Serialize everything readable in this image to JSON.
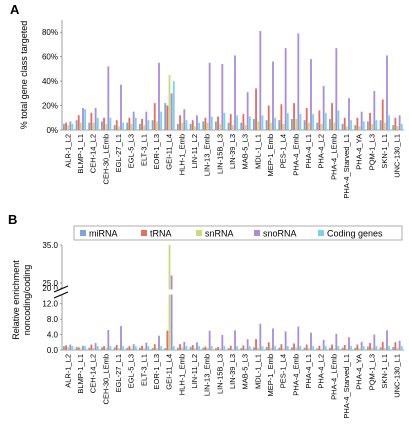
{
  "chart_data": [
    {
      "panel": "A",
      "type": "bar",
      "ylabel": "% total gene class targeted",
      "yticks": [
        "0%",
        "20%",
        "40%",
        "60%",
        "80%"
      ],
      "ylim": [
        0,
        90
      ],
      "categories": [
        "ALR-1_L2",
        "BLMP-1_L1",
        "CEH-14_L2",
        "CEH-30_LEmb",
        "EGL-27_L1",
        "EGL-5_L3",
        "ELT-3_L1",
        "EOR-1_L3",
        "GEI-11_L4",
        "HLH-1_Emb",
        "LIN-11_L2",
        "LIN-13_Emb",
        "LIN-15B_L3",
        "LIN-39_L3",
        "MAB-5_L3",
        "MDL-1_L1",
        "MEP-1_Emb",
        "PES-1_L4",
        "PHA-4_Emb",
        "PHA-4_L1",
        "PHA-4_L2",
        "PHA-4_LEmb",
        "PHA-4_Starved_L1",
        "PHA-4_YA",
        "PQM-1_L3",
        "SKN-1_L1",
        "UNC-130_L1"
      ],
      "series": [
        {
          "name": "miRNA",
          "color": "#7fa6d9",
          "values": [
            5,
            8,
            6,
            7,
            4,
            6,
            5,
            8,
            22,
            5,
            5,
            7,
            7,
            6,
            6,
            9,
            8,
            8,
            9,
            8,
            6,
            9,
            5,
            4,
            7,
            8,
            4
          ]
        },
        {
          "name": "tRNA",
          "color": "#e0705f",
          "values": [
            6,
            12,
            14,
            10,
            8,
            10,
            9,
            22,
            20,
            12,
            8,
            10,
            11,
            13,
            13,
            34,
            20,
            21,
            22,
            18,
            16,
            22,
            10,
            10,
            14,
            25,
            10
          ]
        },
        {
          "name": "snRNA",
          "color": "#c6dc7f",
          "values": [
            4,
            6,
            6,
            5,
            3,
            5,
            4,
            7,
            45,
            6,
            3,
            6,
            5,
            4,
            4,
            7,
            6,
            5,
            9,
            6,
            5,
            6,
            3,
            3,
            5,
            6,
            3
          ]
        },
        {
          "name": "snoRNA",
          "color": "#a98fd6",
          "values": [
            7,
            18,
            18,
            52,
            37,
            15,
            15,
            55,
            30,
            17,
            12,
            55,
            54,
            61,
            31,
            81,
            56,
            67,
            79,
            58,
            36,
            67,
            26,
            15,
            32,
            61,
            12
          ]
        },
        {
          "name": "Coding genes",
          "color": "#7fd1e3",
          "values": [
            5,
            17,
            10,
            10,
            6,
            10,
            8,
            15,
            40,
            8,
            6,
            11,
            14,
            12,
            11,
            12,
            10,
            14,
            13,
            13,
            14,
            16,
            8,
            7,
            8,
            12,
            5
          ]
        }
      ]
    },
    {
      "panel": "B",
      "type": "bar",
      "ylabel": "Relative enrichment noncoding/coding",
      "yticks": [
        "0.0",
        "4.0",
        "8.0",
        "12.0",
        "20.0",
        "25.0",
        "35.0"
      ],
      "axis_break": [
        14,
        20
      ],
      "ylim": [
        0,
        35
      ],
      "legend": [
        "miRNA",
        "tRNA",
        "snRNA",
        "snoRNA",
        "Coding genes"
      ],
      "categories": [
        "ALR-1_L2",
        "BLMP-1_L1",
        "CEH-14_L2",
        "CEH-30_LEmb",
        "EGL-27_L1",
        "EGL-5_L3",
        "ELT-3_L1",
        "EOR-1_L3",
        "GEI-11_L4",
        "HLH-1_Emb",
        "LIN-11_L2",
        "LIN-13_Emb",
        "LIN-15B_L3",
        "LIN-39_L3",
        "MAB-5_L3",
        "MDL-1_L1",
        "MEP-1_Emb",
        "PES-1_L4",
        "PHA-4_Emb",
        "PHA-4_L1",
        "PHA-4_L2",
        "PHA-4_LEmb",
        "PHA-4_Starved_L1",
        "PHA-4_YA",
        "PQM-1_L3",
        "SKN-1_L1",
        "UNC-130_L1"
      ],
      "series": [
        {
          "name": "miRNA",
          "color": "#7fa6d9",
          "values": [
            1.0,
            0.8,
            0.6,
            0.7,
            0.7,
            0.6,
            0.6,
            0.5,
            0.5,
            0.6,
            0.8,
            0.6,
            0.5,
            0.5,
            0.5,
            0.7,
            0.8,
            0.6,
            0.7,
            0.6,
            0.4,
            0.6,
            0.6,
            0.6,
            0.9,
            0.7,
            0.8
          ]
        },
        {
          "name": "tRNA",
          "color": "#e0705f",
          "values": [
            1.2,
            0.7,
            1.4,
            1.0,
            1.3,
            1.0,
            1.1,
            1.5,
            5.0,
            1.5,
            1.3,
            0.9,
            0.8,
            1.1,
            1.2,
            2.8,
            2.0,
            1.5,
            1.7,
            1.4,
            1.1,
            1.4,
            1.3,
            1.4,
            1.8,
            2.1,
            2.0
          ]
        },
        {
          "name": "snRNA",
          "color": "#c6dc7f",
          "values": [
            0.8,
            0.4,
            0.6,
            0.5,
            0.5,
            0.5,
            0.5,
            0.5,
            35.0,
            0.7,
            0.5,
            0.5,
            0.4,
            0.3,
            0.4,
            0.6,
            0.6,
            0.4,
            0.7,
            0.5,
            0.3,
            0.4,
            0.4,
            0.4,
            0.6,
            0.5,
            0.6
          ]
        },
        {
          "name": "snoRNA",
          "color": "#a98fd6",
          "values": [
            1.4,
            1.1,
            1.8,
            5.2,
            6.2,
            1.5,
            1.9,
            3.7,
            27.0,
            2.1,
            2.0,
            5.0,
            3.9,
            5.1,
            2.8,
            6.8,
            5.6,
            4.8,
            6.1,
            4.5,
            2.6,
            4.2,
            3.3,
            2.1,
            4.0,
            5.1,
            2.4
          ]
        },
        {
          "name": "Coding genes",
          "color": "#7fd1e3",
          "values": [
            1,
            1,
            1,
            1,
            1,
            1,
            1,
            1,
            1,
            1,
            1,
            1,
            1,
            1,
            1,
            1,
            1,
            1,
            1,
            1,
            1,
            1,
            1,
            1,
            1,
            1,
            1
          ]
        }
      ]
    }
  ]
}
